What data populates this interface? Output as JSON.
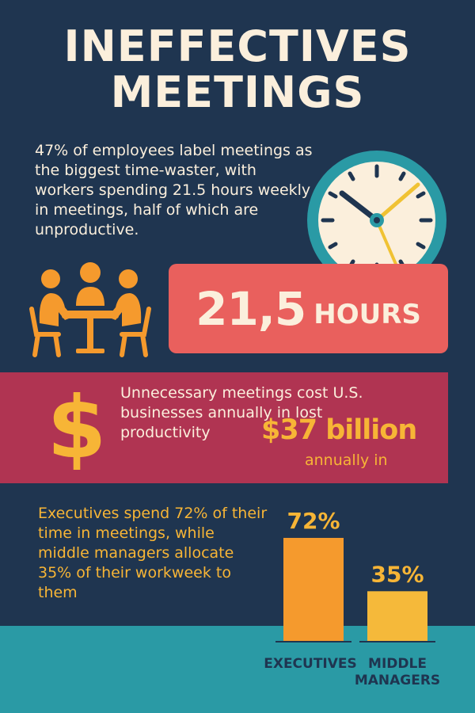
{
  "title": {
    "line1": "INEFFECTIVES",
    "line2": "MEETINGS"
  },
  "intro": {
    "text": "47% of employees label meetings as the biggest time-waster, with workers spending 21.5 hours weekly in meetings, half of which are unproductive."
  },
  "hours_callout": {
    "number": "21,5",
    "unit": "HOURS"
  },
  "cost": {
    "text": "Unnecessary meetings cost U.S. businesses annually in lost productivity",
    "amount": "$37 billion",
    "sub": "annually in",
    "symbol": "$"
  },
  "executives": {
    "text": "Executives spend 72% of their time in meetings, while middle managers allocate 35% of their workweek to them"
  },
  "icons": [
    "clock-icon",
    "meeting-people-icon",
    "dollar-icon"
  ],
  "colors": {
    "background": "#1f3550",
    "cream": "#fbefdc",
    "coral": "#e9605d",
    "magenta": "#b03452",
    "gold": "#f7b536",
    "orange": "#f59a2d",
    "teal": "#2a9aa5"
  },
  "chart_data": {
    "type": "bar",
    "categories": [
      "EXECUTIVES",
      "MIDDLE MANAGERS"
    ],
    "values": [
      72,
      35
    ],
    "value_labels": [
      "72%",
      "35%"
    ],
    "unit": "%",
    "ylim": [
      0,
      100
    ],
    "grid": false,
    "legend": "none"
  }
}
